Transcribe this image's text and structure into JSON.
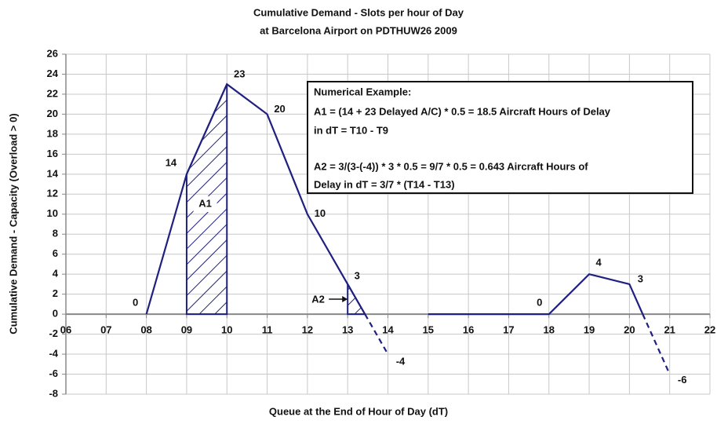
{
  "chart_data": {
    "type": "line",
    "title": [
      "Cumulative Demand - Slots per hour of Day",
      "at Barcelona Airport on PDTHUW26 2009"
    ],
    "xlabel": "Queue at the End of Hour of Day (dT)",
    "ylabel": "Cumulative Demand - Capacity (Overload > 0)",
    "xlim": [
      6,
      22
    ],
    "xticks": [
      {
        "value": 6,
        "label": "06"
      },
      {
        "value": 7,
        "label": "07"
      },
      {
        "value": 8,
        "label": "08"
      },
      {
        "value": 9,
        "label": "09"
      },
      10,
      11,
      12,
      13,
      14,
      15,
      16,
      17,
      18,
      19,
      20,
      21,
      22
    ],
    "ylim": [
      -8,
      26
    ],
    "yticks": [
      -8,
      -6,
      -4,
      -2,
      0,
      2,
      4,
      6,
      8,
      10,
      12,
      14,
      16,
      18,
      20,
      22,
      24,
      26
    ],
    "grid": true,
    "series": [
      {
        "color": "#1f2080",
        "style": "solid",
        "x": [
          8,
          9,
          10,
          11,
          12,
          13,
          13.43,
          14,
          15,
          18,
          19,
          20,
          20.33
        ],
        "values": [
          0,
          14,
          23,
          20,
          10,
          3,
          0,
          null,
          0,
          0,
          4,
          3,
          0
        ]
      },
      {
        "color": "#1f2080",
        "style": "dashed",
        "x": [
          13.43,
          14,
          17,
          20.33,
          21
        ],
        "values": [
          0,
          -4,
          null,
          0,
          -6
        ]
      }
    ],
    "data_labels": [
      {
        "x": 8,
        "value": 0
      },
      {
        "x": 9,
        "value": 14
      },
      {
        "x": 10,
        "value": 23
      },
      {
        "x": 11,
        "value": 20
      },
      {
        "x": 12,
        "value": 10
      },
      {
        "x": 13,
        "value": 3
      },
      {
        "x": 14,
        "value": -4
      },
      {
        "x": 18,
        "value": 0
      },
      {
        "x": 19,
        "value": 4
      },
      {
        "x": 20,
        "value": 3
      },
      {
        "x": 21,
        "value": -6
      }
    ],
    "areas": [
      {
        "label": "A1",
        "x": [
          9,
          9,
          10,
          10
        ],
        "y": [
          0,
          14,
          23,
          0
        ]
      },
      {
        "label": "A2",
        "x": [
          13,
          13,
          13.43
        ],
        "y": [
          0,
          3,
          0
        ]
      }
    ],
    "annotation": [
      "Numerical Example:",
      "A1 = (14 + 23 Delayed A/C) * 0.5 = 18.5 Aircraft Hours of Delay",
      "in dT = T10 - T9",
      "A2 = 3/(3-(-4)) * 3 * 0.5 = 9/7 * 0.5 = 0.643 Aircraft Hours of",
      "Delay in dT = 3/7 * (T14 - T13)"
    ]
  }
}
